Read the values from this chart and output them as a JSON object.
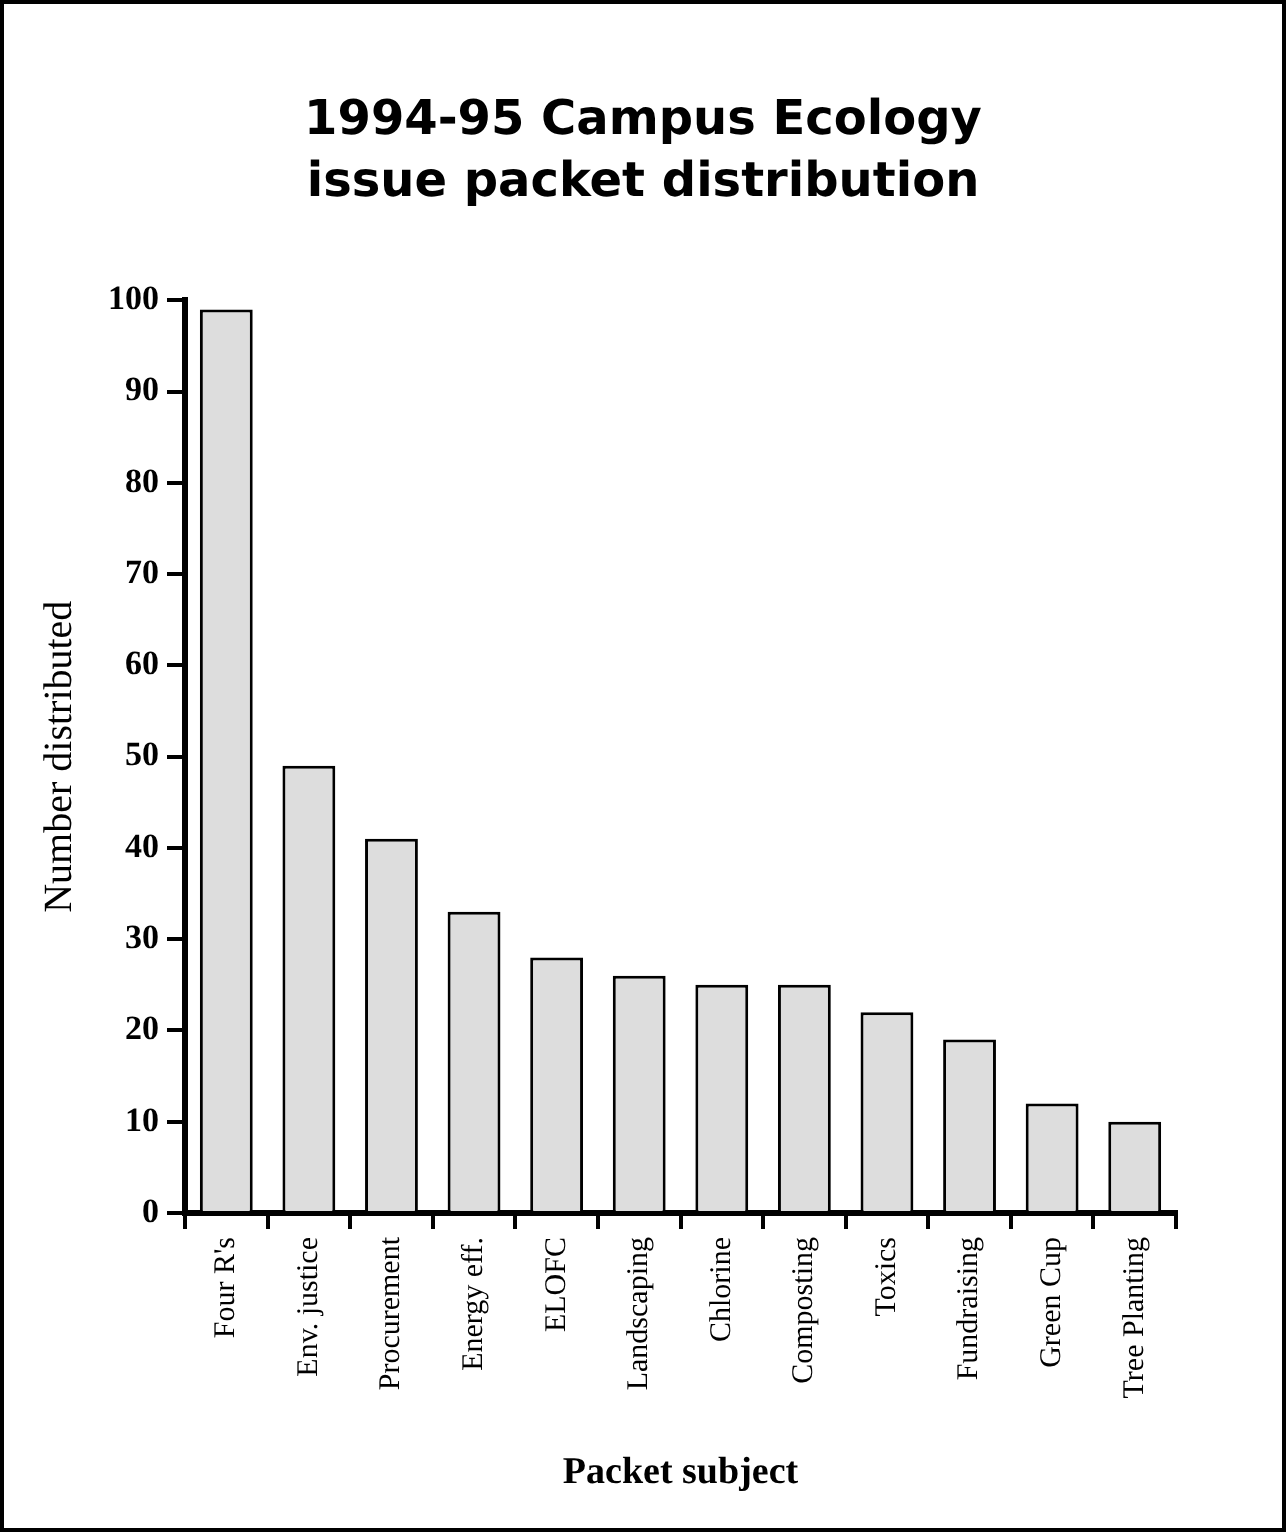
{
  "chart_data": {
    "type": "bar",
    "title": "1994-95 Campus Ecology issue packet distribution",
    "xlabel": "Packet subject",
    "ylabel": "Number distributed",
    "categories": [
      "Four R's",
      "Env. justice",
      "Procurement",
      "Energy eff.",
      "ELOFC",
      "Landscaping",
      "Chlorine",
      "Composting",
      "Toxics",
      "Fundraising",
      "Green Cup",
      "Tree Planting"
    ],
    "values": [
      99,
      49,
      41,
      33,
      28,
      26,
      25,
      25,
      22,
      19,
      12,
      10
    ],
    "color": "#dddddd",
    "ylim": [
      0,
      100
    ],
    "yticks": [
      0,
      10,
      20,
      30,
      40,
      50,
      60,
      70,
      80,
      90,
      100
    ],
    "grid": false,
    "legend": false
  }
}
